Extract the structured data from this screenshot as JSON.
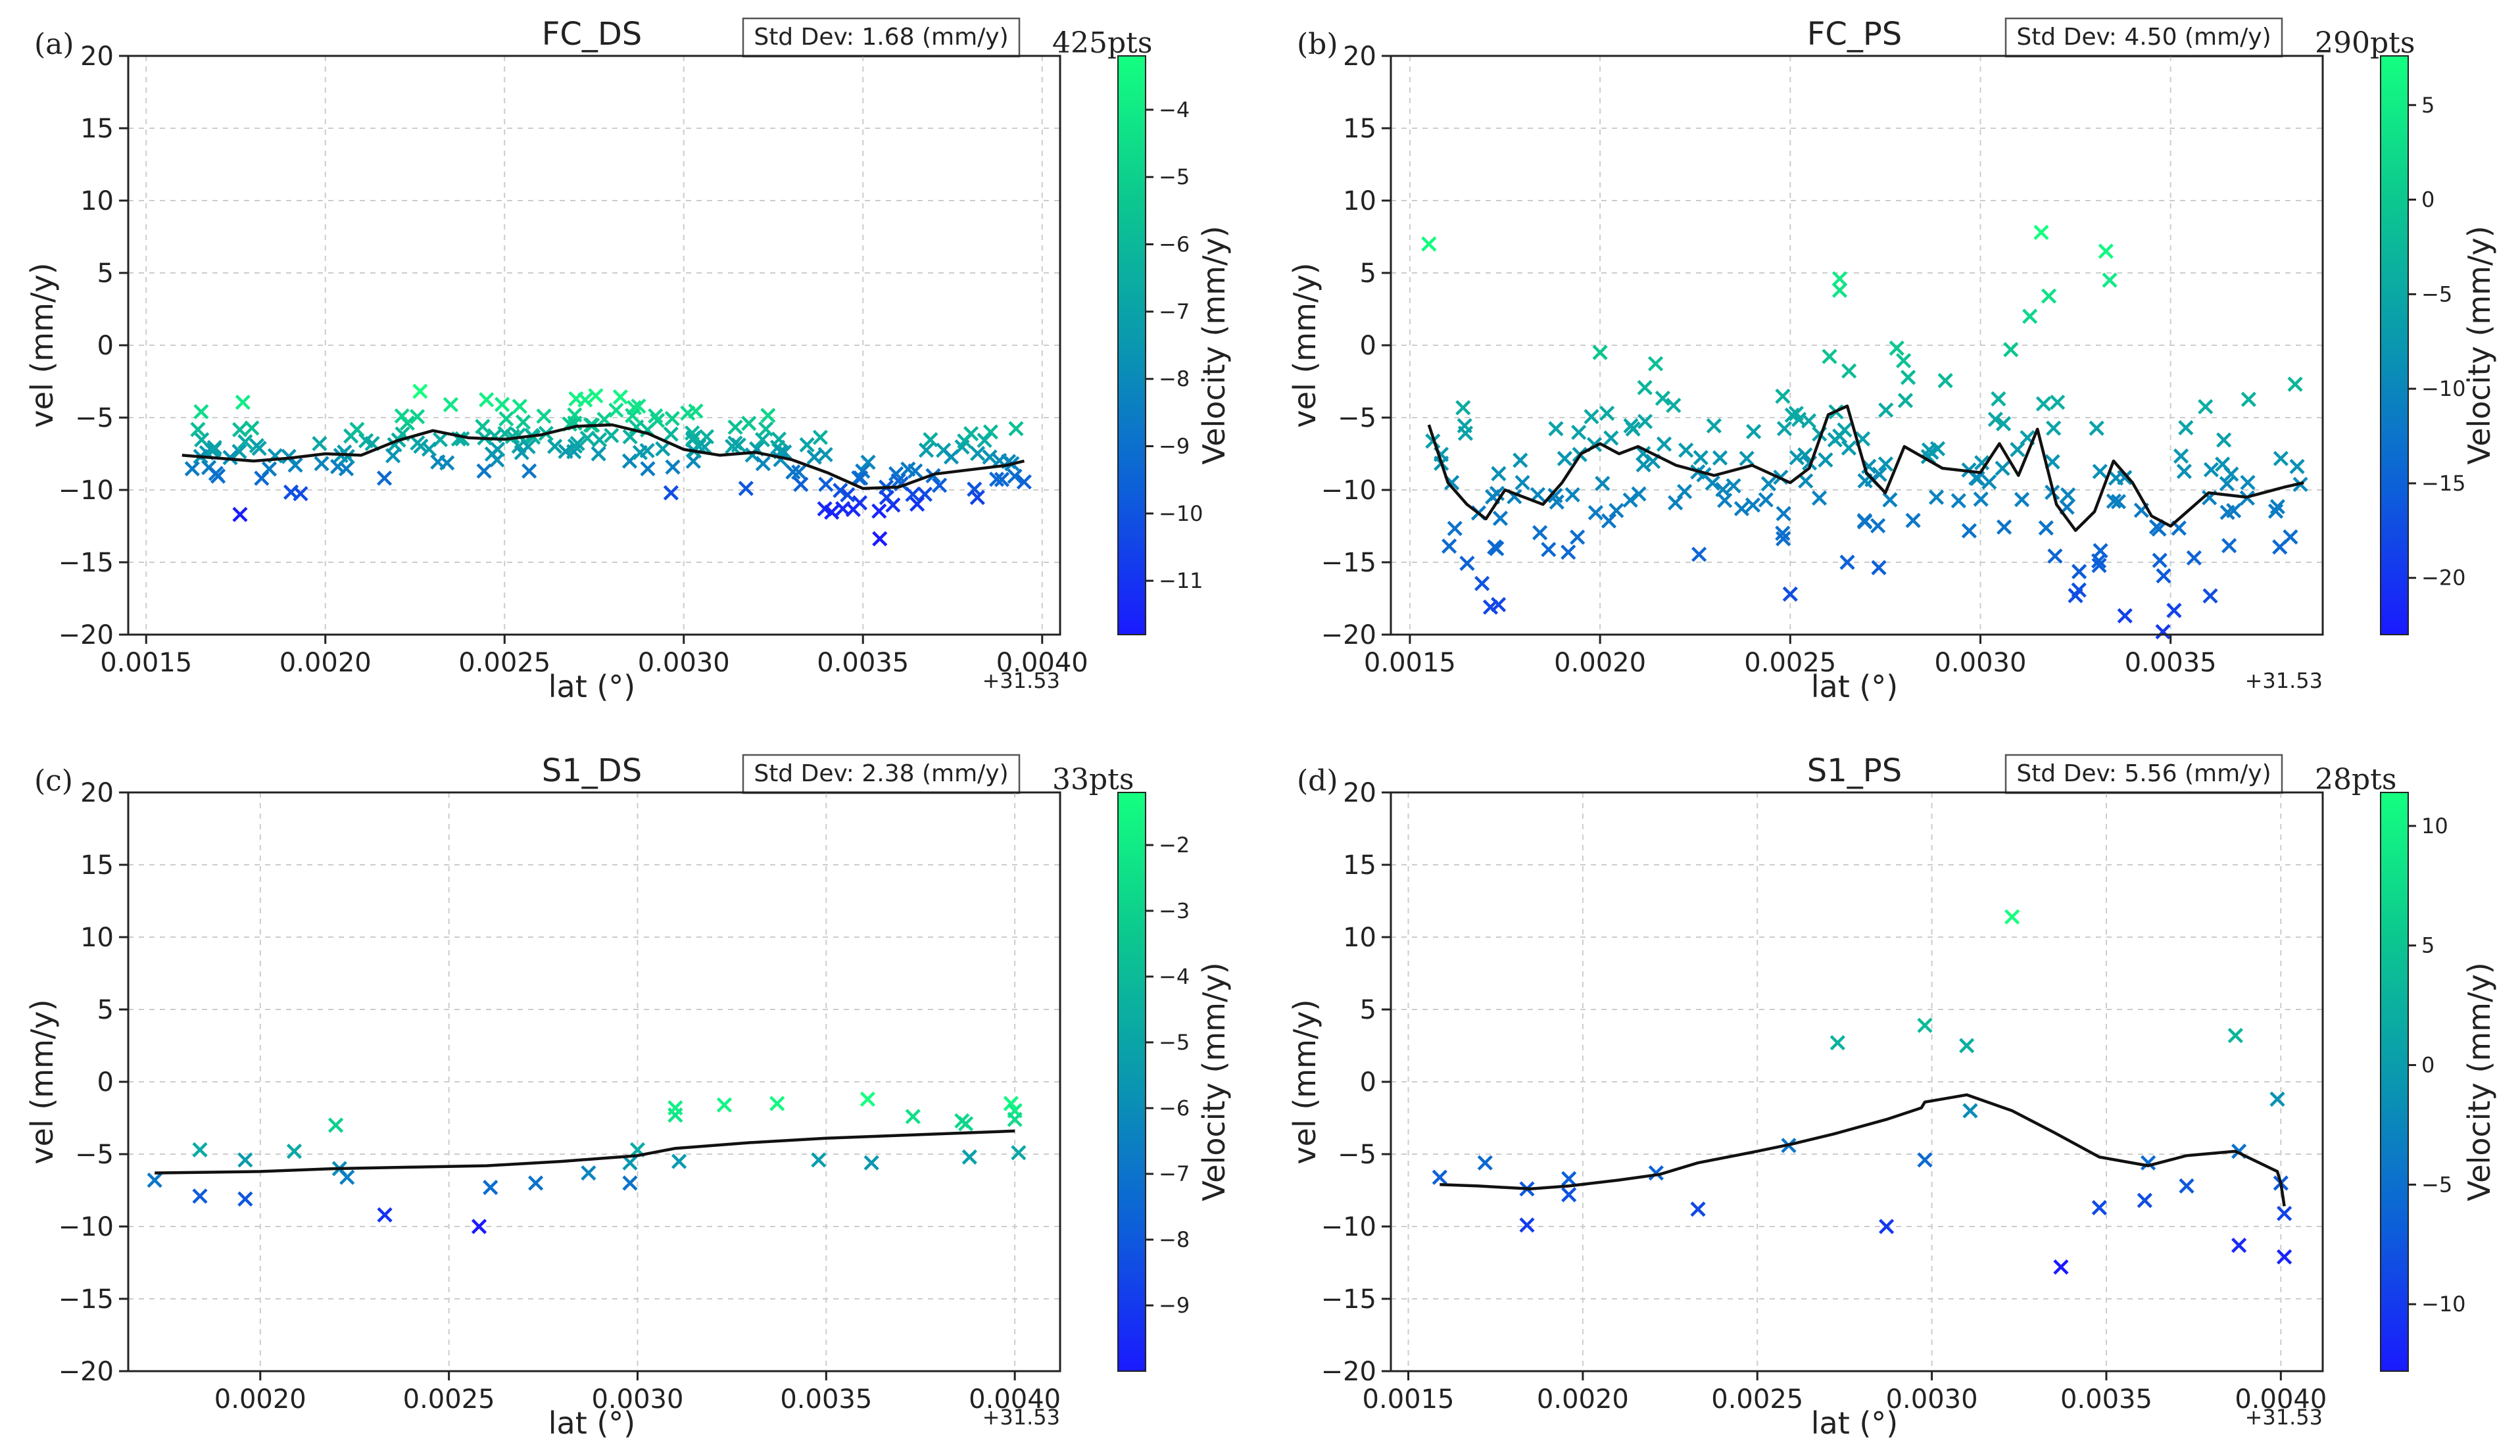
{
  "figure": {
    "colormap": [
      "#1a1aff",
      "#0d5fd9",
      "#0a97b0",
      "#0cc78f",
      "#14ff80"
    ]
  },
  "chart_data": [
    {
      "panel": "(a)",
      "type": "scatter",
      "title": "FC_DS",
      "std_dev": "Std Dev: 1.68 (mm/y)",
      "points_label": "425pts",
      "xlabel": "lat (°)",
      "ylabel": "vel (mm/y)",
      "xlim": [
        0.00145,
        0.00405
      ],
      "ylim": [
        -20,
        20
      ],
      "xticks": [
        0.0015,
        0.002,
        0.0025,
        0.003,
        0.0035,
        0.004
      ],
      "xtick_labels": [
        "0.0015",
        "0.0020",
        "0.0025",
        "0.0030",
        "0.0035",
        "0.0040"
      ],
      "yticks": [
        -20,
        -15,
        -10,
        -5,
        0,
        5,
        10,
        15,
        20
      ],
      "ytick_labels": [
        "−20",
        "−15",
        "−10",
        "−5",
        "0",
        "5",
        "10",
        "15",
        "20"
      ],
      "x_offset_label": "+31.53",
      "colorbar": {
        "label": "Velocity (mm/y)",
        "range": [
          -11.8,
          -3.2
        ],
        "ticks": [
          -4,
          -5,
          -6,
          -7,
          -8,
          -9,
          -10,
          -11
        ],
        "tick_labels": [
          "−4",
          "−5",
          "−6",
          "−7",
          "−8",
          "−9",
          "−10",
          "−11"
        ]
      },
      "trend": {
        "x": [
          0.0016,
          0.0017,
          0.0018,
          0.0019,
          0.002,
          0.0021,
          0.0022,
          0.0023,
          0.0024,
          0.0025,
          0.0026,
          0.0027,
          0.0028,
          0.0029,
          0.003,
          0.0031,
          0.0032,
          0.0033,
          0.0034,
          0.0035,
          0.0036,
          0.0037,
          0.0038,
          0.0039,
          0.00395
        ],
        "y": [
          -7.6,
          -7.8,
          -8.0,
          -7.8,
          -7.5,
          -7.6,
          -6.6,
          -5.9,
          -6.4,
          -6.5,
          -6.2,
          -5.6,
          -5.5,
          -6.1,
          -7.2,
          -7.6,
          -7.4,
          -7.9,
          -8.8,
          -9.9,
          -9.8,
          -8.9,
          -8.6,
          -8.3,
          -8.0
        ]
      },
      "scatter": {
        "generator": "trend-scatter",
        "n": 200,
        "spread": 1.4,
        "seed": 11,
        "x_range": [
          0.0016,
          0.00395
        ]
      }
    },
    {
      "panel": "(b)",
      "type": "scatter",
      "title": "FC_PS",
      "std_dev": "Std Dev: 4.50 (mm/y)",
      "points_label": "290pts",
      "xlabel": "lat (°)",
      "ylabel": "vel (mm/y)",
      "xlim": [
        0.00145,
        0.0039
      ],
      "ylim": [
        -20,
        20
      ],
      "xticks": [
        0.0015,
        0.002,
        0.0025,
        0.003,
        0.0035
      ],
      "xtick_labels": [
        "0.0015",
        "0.0020",
        "0.0025",
        "0.0030",
        "0.0035"
      ],
      "yticks": [
        -20,
        -15,
        -10,
        -5,
        0,
        5,
        10,
        15,
        20
      ],
      "ytick_labels": [
        "−20",
        "−15",
        "−10",
        "−5",
        "0",
        "5",
        "10",
        "15",
        "20"
      ],
      "x_offset_label": "+31.53",
      "colorbar": {
        "label": "Velocity (mm/y)",
        "range": [
          -23,
          7.6
        ],
        "ticks": [
          5,
          0,
          -5,
          -10,
          -15,
          -20
        ],
        "tick_labels": [
          "5",
          "0",
          "−5",
          "−10",
          "−15",
          "−20"
        ]
      },
      "trend": {
        "x": [
          0.00155,
          0.0016,
          0.00165,
          0.0017,
          0.00175,
          0.0018,
          0.00185,
          0.0019,
          0.00195,
          0.002,
          0.00205,
          0.0021,
          0.0022,
          0.0023,
          0.0024,
          0.0025,
          0.00255,
          0.0026,
          0.00265,
          0.0027,
          0.00275,
          0.0028,
          0.0029,
          0.003,
          0.00305,
          0.0031,
          0.00315,
          0.0032,
          0.00325,
          0.0033,
          0.00335,
          0.0034,
          0.00345,
          0.0035,
          0.0036,
          0.0037,
          0.0038,
          0.00385
        ],
        "y": [
          -5.5,
          -9.5,
          -11.0,
          -12.0,
          -10.0,
          -10.5,
          -11.0,
          -9.5,
          -7.5,
          -6.8,
          -7.5,
          -7.0,
          -8.3,
          -9.0,
          -8.3,
          -9.5,
          -8.5,
          -4.8,
          -4.2,
          -8.8,
          -10.2,
          -7.0,
          -8.5,
          -8.8,
          -6.8,
          -9.0,
          -5.8,
          -11.0,
          -12.8,
          -11.5,
          -8.0,
          -9.5,
          -11.8,
          -12.5,
          -10.2,
          -10.5,
          -9.8,
          -9.5
        ]
      },
      "scatter": {
        "generator": "trend-scatter",
        "n": 190,
        "spread": 3.2,
        "seed": 23,
        "x_range": [
          0.00155,
          0.00385
        ]
      },
      "outliers": {
        "x": [
          0.00155,
          0.002,
          0.00263,
          0.00263,
          0.00278,
          0.00316,
          0.00318,
          0.00333,
          0.00334,
          0.00313,
          0.00308,
          0.00338,
          0.00348,
          0.00325,
          0.0025,
          0.00265
        ],
        "y": [
          7.0,
          -0.5,
          4.6,
          3.8,
          -0.2,
          7.8,
          3.4,
          6.5,
          4.5,
          2.0,
          -0.3,
          -18.7,
          -20.0,
          -17.3,
          -17.2,
          -15.0
        ]
      }
    },
    {
      "panel": "(c)",
      "type": "scatter",
      "title": "S1_DS",
      "std_dev": "Std Dev: 2.38 (mm/y)",
      "points_label": "33pts",
      "xlabel": "lat (°)",
      "ylabel": "vel (mm/y)",
      "xlim": [
        0.00165,
        0.00412
      ],
      "ylim": [
        -20,
        20
      ],
      "xticks": [
        0.002,
        0.0025,
        0.003,
        0.0035,
        0.004
      ],
      "xtick_labels": [
        "0.0020",
        "0.0025",
        "0.0030",
        "0.0035",
        "0.0040"
      ],
      "yticks": [
        -20,
        -15,
        -10,
        -5,
        0,
        5,
        10,
        15,
        20
      ],
      "ytick_labels": [
        "−20",
        "−15",
        "−10",
        "−5",
        "0",
        "5",
        "10",
        "15",
        "20"
      ],
      "x_offset_label": "+31.53",
      "colorbar": {
        "label": "Velocity (mm/y)",
        "range": [
          -10,
          -1.2
        ],
        "ticks": [
          -2,
          -3,
          -4,
          -5,
          -6,
          -7,
          -8,
          -9
        ],
        "tick_labels": [
          "−2",
          "−3",
          "−4",
          "−5",
          "−6",
          "−7",
          "−8",
          "−9"
        ]
      },
      "trend": {
        "x": [
          0.00172,
          0.002,
          0.0022,
          0.0024,
          0.0026,
          0.0028,
          0.003,
          0.0031,
          0.0033,
          0.0035,
          0.0037,
          0.0039,
          0.004
        ],
        "y": [
          -6.3,
          -6.2,
          -6.0,
          -5.9,
          -5.8,
          -5.5,
          -5.1,
          -4.6,
          -4.2,
          -3.9,
          -3.7,
          -3.5,
          -3.4
        ]
      },
      "scatter": {
        "x": [
          0.00172,
          0.00184,
          0.00184,
          0.00196,
          0.00196,
          0.00209,
          0.0022,
          0.00221,
          0.00223,
          0.00233,
          0.00258,
          0.00261,
          0.00273,
          0.00287,
          0.00298,
          0.00298,
          0.003,
          0.0031,
          0.0031,
          0.00311,
          0.00323,
          0.00337,
          0.00348,
          0.00361,
          0.00362,
          0.00373,
          0.00386,
          0.00387,
          0.00388,
          0.00399,
          0.004,
          0.004,
          0.00401
        ],
        "y": [
          -6.8,
          -7.9,
          -4.7,
          -8.1,
          -5.4,
          -4.8,
          -3.0,
          -6.0,
          -6.6,
          -9.2,
          -10.0,
          -7.3,
          -7.0,
          -6.3,
          -7.0,
          -5.6,
          -4.7,
          -2.3,
          -1.8,
          -5.5,
          -1.6,
          -1.5,
          -5.4,
          -1.2,
          -5.6,
          -2.4,
          -2.7,
          -2.9,
          -5.2,
          -1.5,
          -2.0,
          -2.6,
          -4.9
        ]
      }
    },
    {
      "panel": "(d)",
      "type": "scatter",
      "title": "S1_PS",
      "std_dev": "Std Dev: 5.56 (mm/y)",
      "points_label": "28pts",
      "xlabel": "lat (°)",
      "ylabel": "vel (mm/y)",
      "xlim": [
        0.00145,
        0.00412
      ],
      "ylim": [
        -20,
        20
      ],
      "xticks": [
        0.0015,
        0.002,
        0.0025,
        0.003,
        0.0035,
        0.004
      ],
      "xtick_labels": [
        "0.0015",
        "0.0020",
        "0.0025",
        "0.0030",
        "0.0035",
        "0.0040"
      ],
      "yticks": [
        -20,
        -15,
        -10,
        -5,
        0,
        5,
        10,
        15,
        20
      ],
      "ytick_labels": [
        "−20",
        "−15",
        "−10",
        "−5",
        "0",
        "5",
        "10",
        "15",
        "20"
      ],
      "x_offset_label": "+31.53",
      "colorbar": {
        "label": "Velocity (mm/y)",
        "range": [
          -12.8,
          11.4
        ],
        "ticks": [
          10,
          5,
          0,
          -5,
          -10
        ],
        "tick_labels": [
          "10",
          "5",
          "0",
          "−5",
          "−10"
        ]
      },
      "trend": {
        "x": [
          0.00159,
          0.0017,
          0.00185,
          0.00196,
          0.0021,
          0.00222,
          0.00233,
          0.0025,
          0.0026,
          0.00272,
          0.00287,
          0.00297,
          0.00298,
          0.0031,
          0.00323,
          0.00335,
          0.00348,
          0.00362,
          0.00373,
          0.00387,
          0.00399,
          0.004,
          0.00401
        ],
        "y": [
          -7.1,
          -7.2,
          -7.4,
          -7.2,
          -6.8,
          -6.4,
          -5.6,
          -4.8,
          -4.3,
          -3.6,
          -2.6,
          -1.8,
          -1.4,
          -0.9,
          -2.0,
          -3.5,
          -5.2,
          -5.8,
          -5.1,
          -4.8,
          -6.2,
          -7.0,
          -8.6
        ]
      },
      "scatter": {
        "x": [
          0.00159,
          0.00172,
          0.00184,
          0.00184,
          0.00196,
          0.00196,
          0.00221,
          0.00233,
          0.00259,
          0.00273,
          0.00287,
          0.00298,
          0.00298,
          0.0031,
          0.00311,
          0.00323,
          0.00337,
          0.00348,
          0.00361,
          0.00362,
          0.00373,
          0.00387,
          0.00388,
          0.00388,
          0.00399,
          0.004,
          0.00401,
          0.00401
        ],
        "y": [
          -6.6,
          -5.6,
          -7.4,
          -9.9,
          -7.8,
          -6.7,
          -6.3,
          -8.8,
          -4.4,
          2.7,
          -10.0,
          3.9,
          -5.4,
          2.5,
          -2.0,
          11.4,
          -12.8,
          -8.7,
          -8.2,
          -5.6,
          -7.2,
          3.2,
          -4.8,
          -11.3,
          -1.2,
          -7.0,
          -12.1,
          -9.1
        ]
      }
    }
  ]
}
